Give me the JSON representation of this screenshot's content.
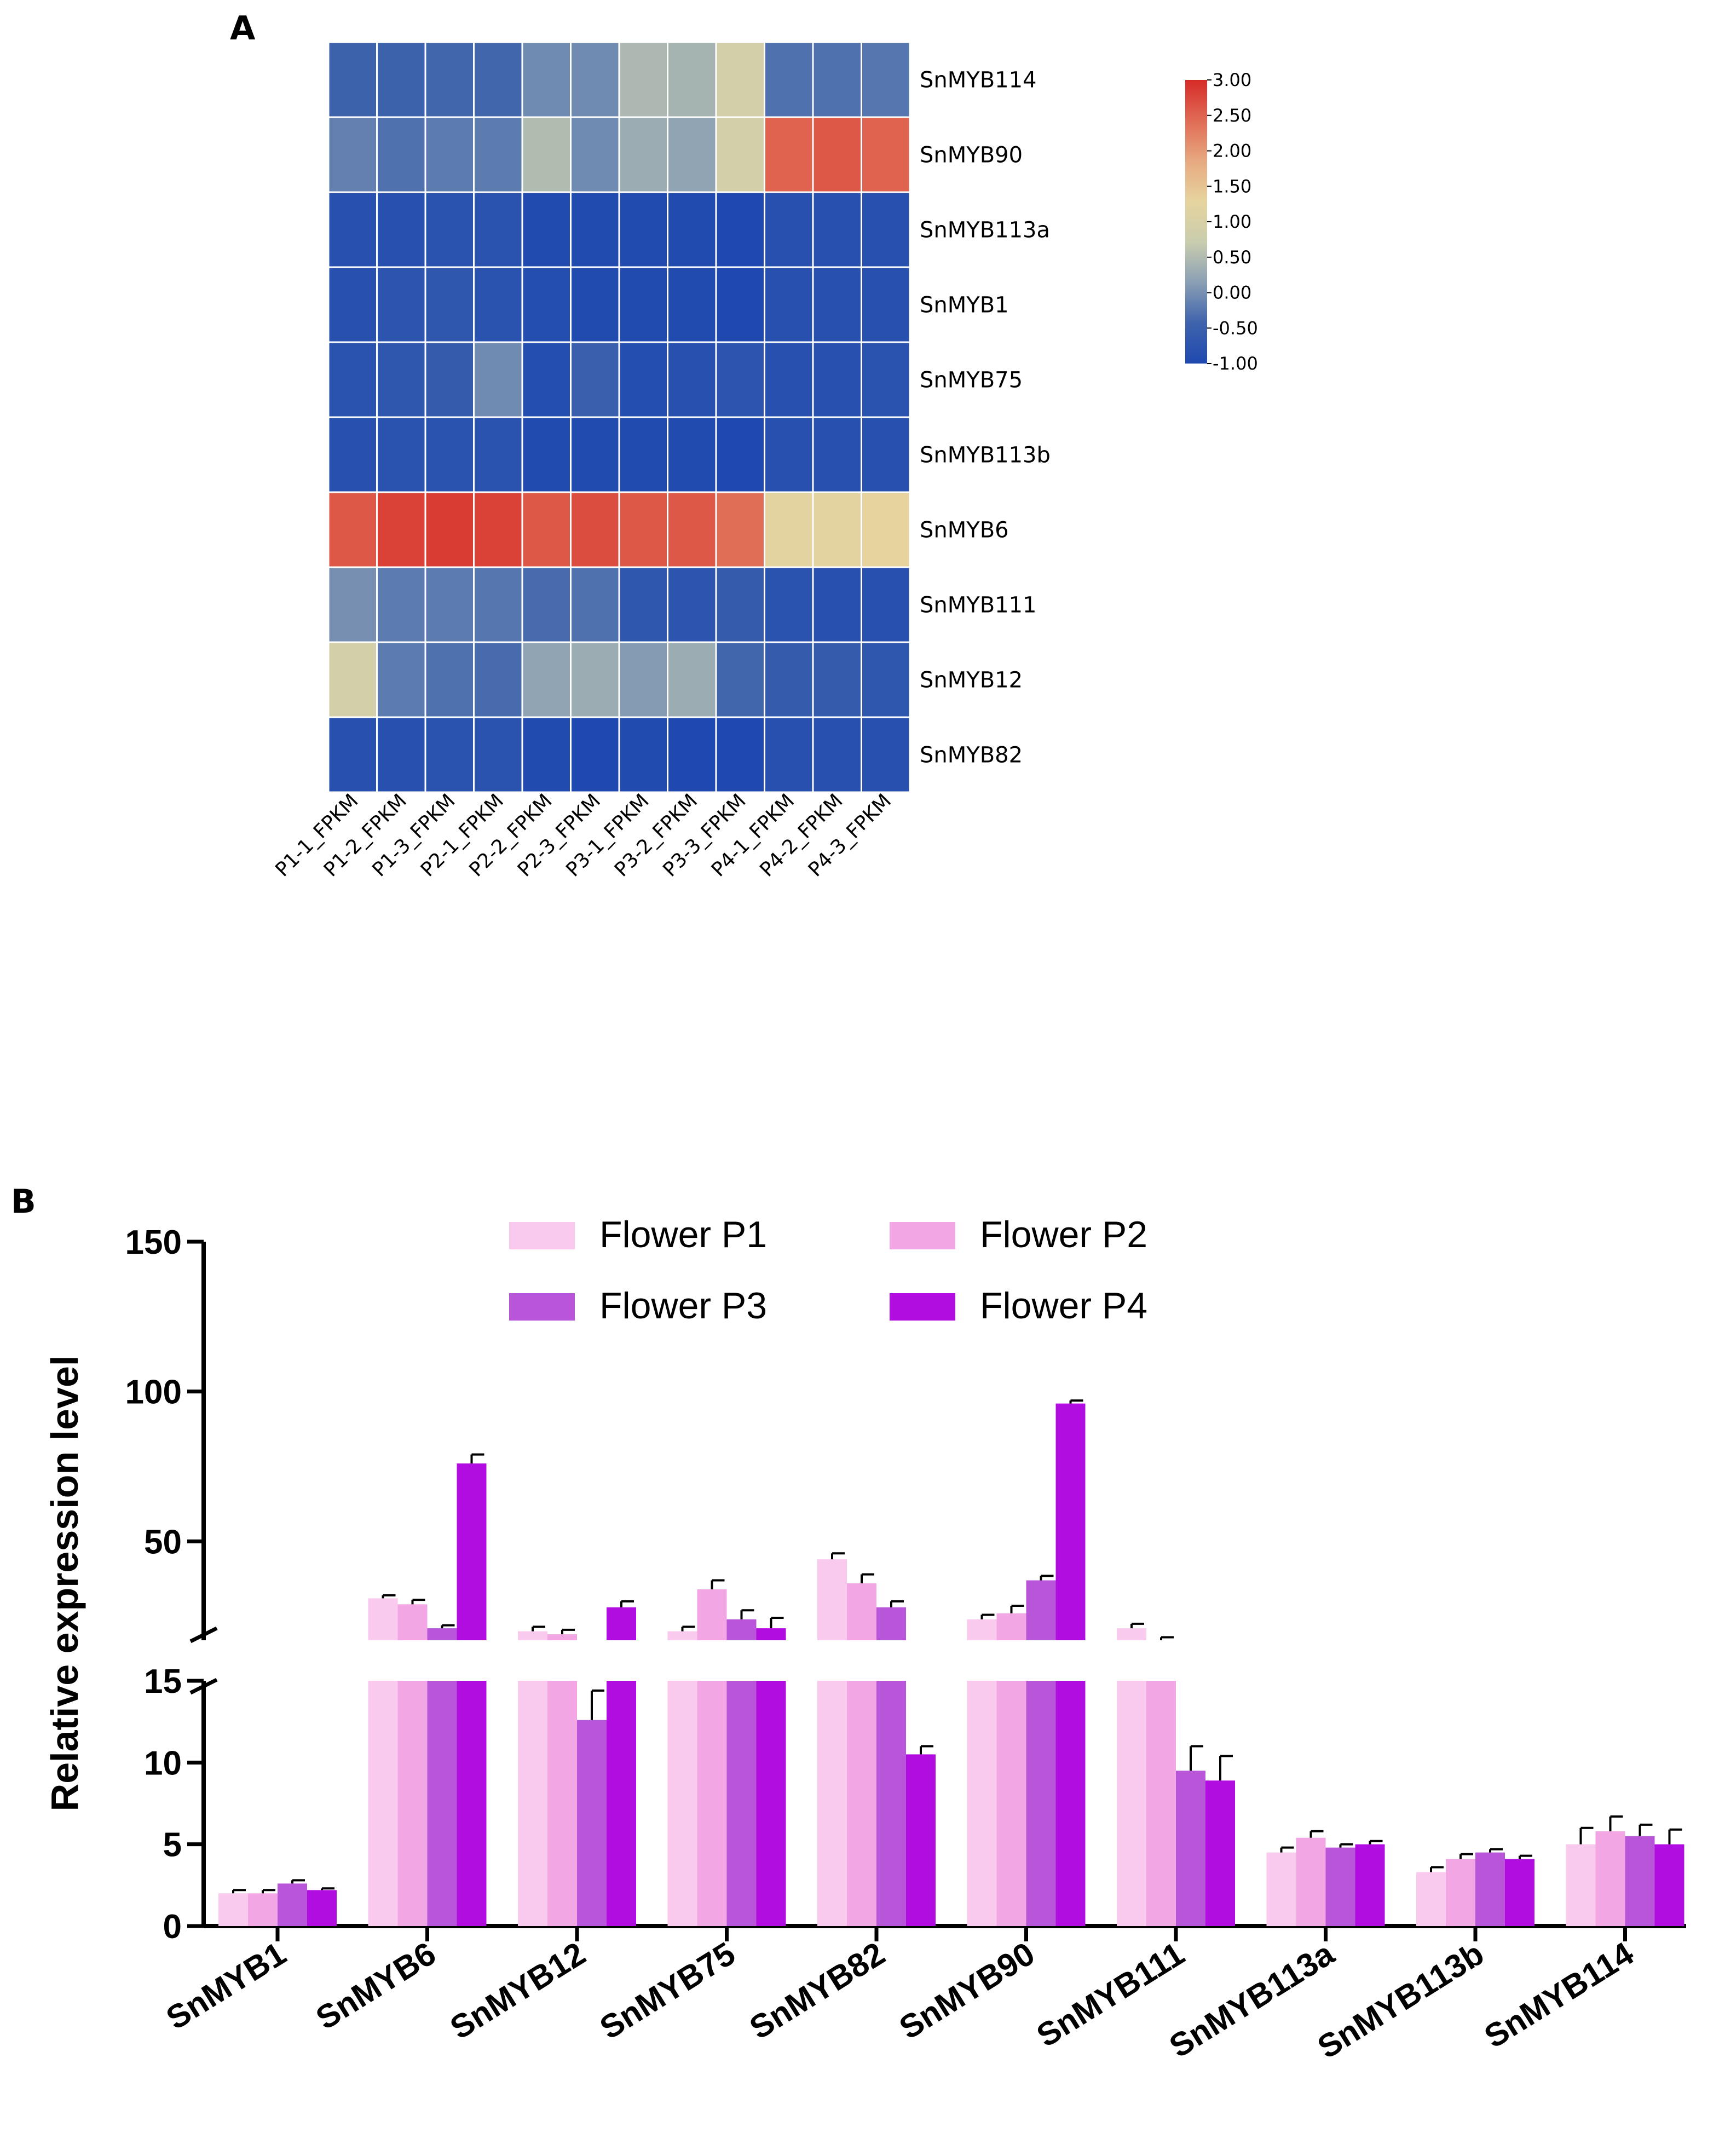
{
  "chart_data": [
    {
      "panel": "A",
      "type": "heatmap",
      "rows": [
        "SnMYB114",
        "SnMYB90",
        "SnMYB113a",
        "SnMYB1",
        "SnMYB75",
        "SnMYB113b",
        "SnMYB6",
        "SnMYB111",
        "SnMYB12",
        "SnMYB82"
      ],
      "columns": [
        "P1-1_FPKM",
        "P1-2_FPKM",
        "P1-3_FPKM",
        "P2-1_FPKM",
        "P2-2_FPKM",
        "P2-3_FPKM",
        "P3-1_FPKM",
        "P3-2_FPKM",
        "P3-3_FPKM",
        "P4-1_FPKM",
        "P4-2_FPKM",
        "P4-3_FPKM"
      ],
      "values": [
        [
          -0.45,
          -0.45,
          -0.4,
          -0.4,
          -0.05,
          -0.05,
          0.45,
          0.4,
          0.9,
          -0.3,
          -0.3,
          -0.25
        ],
        [
          -0.15,
          -0.3,
          -0.2,
          -0.2,
          0.5,
          -0.05,
          0.3,
          0.2,
          0.9,
          2.5,
          2.6,
          2.5
        ],
        [
          -0.85,
          -0.85,
          -0.8,
          -0.8,
          -0.95,
          -0.95,
          -0.95,
          -0.95,
          -1.0,
          -0.85,
          -0.85,
          -0.85
        ],
        [
          -0.85,
          -0.75,
          -0.7,
          -0.8,
          -0.9,
          -0.95,
          -0.95,
          -0.95,
          -1.0,
          -0.85,
          -0.85,
          -0.85
        ],
        [
          -0.8,
          -0.7,
          -0.6,
          -0.05,
          -0.9,
          -0.5,
          -0.9,
          -0.85,
          -0.75,
          -0.85,
          -0.85,
          -0.8
        ],
        [
          -0.85,
          -0.8,
          -0.8,
          -0.8,
          -0.95,
          -0.95,
          -0.95,
          -0.95,
          -1.0,
          -0.85,
          -0.85,
          -0.85
        ],
        [
          2.6,
          2.8,
          2.85,
          2.8,
          2.6,
          2.7,
          2.6,
          2.6,
          2.4,
          1.2,
          1.2,
          1.3
        ],
        [
          0.0,
          -0.2,
          -0.2,
          -0.25,
          -0.35,
          -0.3,
          -0.7,
          -0.75,
          -0.6,
          -0.8,
          -0.85,
          -0.85
        ],
        [
          0.9,
          -0.2,
          -0.3,
          -0.35,
          0.2,
          0.3,
          0.1,
          0.3,
          -0.4,
          -0.6,
          -0.6,
          -0.7
        ],
        [
          -0.85,
          -0.85,
          -0.8,
          -0.8,
          -0.95,
          -1.0,
          -0.95,
          -1.0,
          -1.0,
          -0.85,
          -0.85,
          -0.85
        ]
      ],
      "colorbar": {
        "min": -1.0,
        "max": 3.0,
        "ticks": [
          "3.00",
          "2.50",
          "2.00",
          "1.50",
          "1.00",
          "0.50",
          "0.00",
          "-0.50",
          "-1.00"
        ],
        "colors": [
          "#1f49b0",
          "#3e63ac",
          "#8a9fb4",
          "#c9cdae",
          "#e6d49e",
          "#e7a980",
          "#e06b55",
          "#d62b27"
        ]
      }
    },
    {
      "panel": "B",
      "type": "bar",
      "ylabel": "Relative expression level",
      "y_axis": {
        "type": "broken",
        "lower_range": [
          0,
          15
        ],
        "upper_range": [
          17,
          150
        ],
        "lower_ticks": [
          "0",
          "5",
          "10",
          "15"
        ],
        "upper_ticks": [
          "50",
          "100",
          "150"
        ]
      },
      "categories": [
        "SnMYB1",
        "SnMYB6",
        "SnMYB12",
        "SnMYB75",
        "SnMYB82",
        "SnMYB90",
        "SnMYB111",
        "SnMYB113a",
        "SnMYB113b",
        "SnMYB114"
      ],
      "series": [
        {
          "name": "Flower P1",
          "color": "#f9c9ee",
          "values": [
            2.0,
            31,
            20,
            20,
            44,
            24,
            21,
            4.5,
            3.3,
            5.0
          ],
          "errors": [
            0.2,
            1.0,
            1.5,
            1.5,
            2.0,
            1.5,
            1.5,
            0.3,
            0.3,
            1.0
          ]
        },
        {
          "name": "Flower P2",
          "color": "#f2a6e4",
          "values": [
            2.0,
            29,
            19,
            34,
            36,
            26,
            17,
            5.4,
            4.1,
            5.8
          ],
          "errors": [
            0.2,
            1.5,
            1.5,
            3.0,
            3.0,
            2.5,
            1.0,
            0.4,
            0.3,
            0.9
          ]
        },
        {
          "name": "Flower P3",
          "color": "#b855d9",
          "values": [
            2.6,
            21,
            12.6,
            24,
            28,
            37,
            9.5,
            4.8,
            4.5,
            5.5
          ],
          "errors": [
            0.2,
            1.0,
            1.8,
            3.0,
            2.0,
            1.5,
            1.5,
            0.2,
            0.2,
            0.7
          ]
        },
        {
          "name": "Flower P4",
          "color": "#b10de1",
          "values": [
            2.2,
            76,
            28,
            21,
            10.5,
            96,
            8.9,
            5.0,
            4.1,
            5.0
          ],
          "errors": [
            0.1,
            3.0,
            2.0,
            3.5,
            0.5,
            1.0,
            1.5,
            0.2,
            0.2,
            0.9
          ]
        }
      ]
    }
  ]
}
